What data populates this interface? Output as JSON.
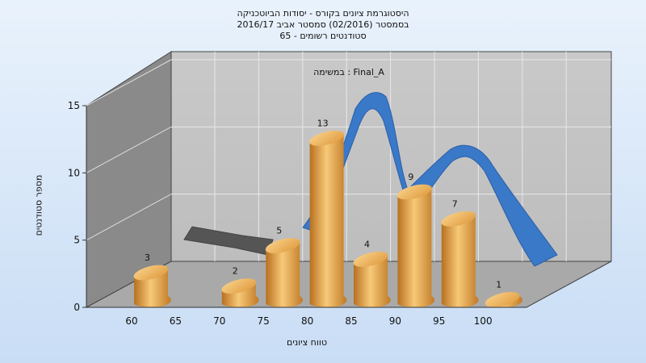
{
  "chart_data": {
    "type": "bar",
    "title_lines": [
      "היסטוגרמת ציונים בקורס - יסודות הביוטכניקה",
      "בסמסטר  (02/2016)  סמסטר אביב 2016/17",
      "סטודנטים רשומים - 65"
    ],
    "annotation": "במשימה : Final_A",
    "xlabel": "טווח ציונים",
    "ylabel": "מספר סטודנטים",
    "x_ticks": [
      "60",
      "65",
      "70",
      "75",
      "80",
      "85",
      "90",
      "95",
      "100"
    ],
    "y_ticks": [
      "0",
      "5",
      "10",
      "15"
    ],
    "ylim": [
      0,
      15
    ],
    "bars": [
      {
        "x": 60,
        "value": 3,
        "label": "3"
      },
      {
        "x": 70,
        "value": 2,
        "label": "2"
      },
      {
        "x": 75,
        "value": 5,
        "label": "5"
      },
      {
        "x": 80,
        "value": 13,
        "label": "13"
      },
      {
        "x": 85,
        "value": 4,
        "label": "4"
      },
      {
        "x": 90,
        "value": 9,
        "label": "9"
      },
      {
        "x": 95,
        "value": 7,
        "label": "7"
      },
      {
        "x": 100,
        "value": 1,
        "label": "1"
      }
    ],
    "grid": true,
    "bar_color": "#e8a948",
    "curve_color": "#3a78c8"
  }
}
